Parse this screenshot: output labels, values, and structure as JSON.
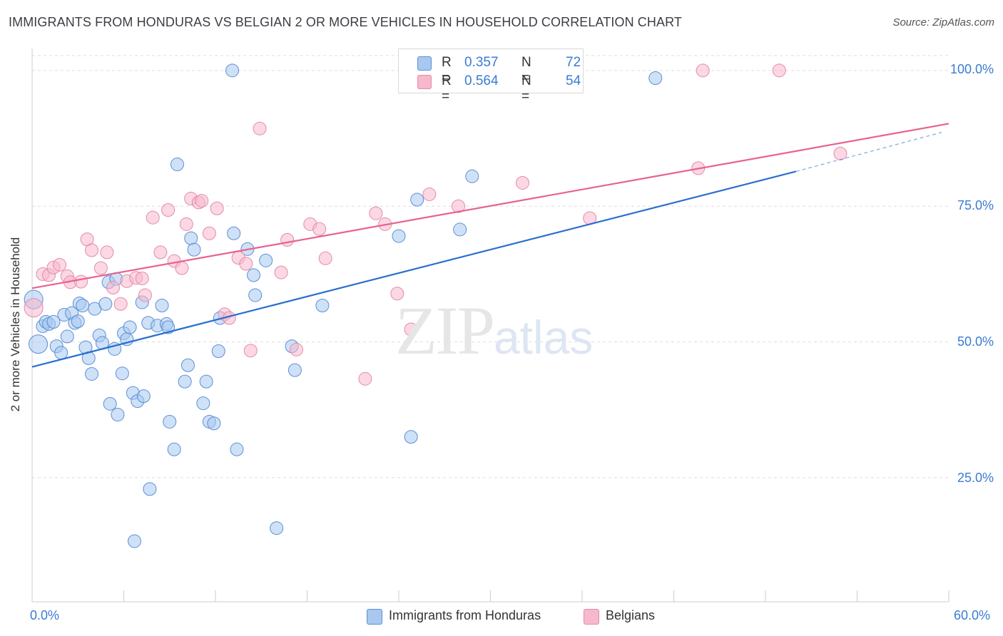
{
  "title": "IMMIGRANTS FROM HONDURAS VS BELGIAN 2 OR MORE VEHICLES IN HOUSEHOLD CORRELATION CHART",
  "source": "Source: ZipAtlas.com",
  "watermark": {
    "zip": "ZIP",
    "atlas": "atlas"
  },
  "legend": {
    "rows": [
      {
        "r_label": "R =",
        "r_value": "0.357",
        "n_label": "N =",
        "n_value": "72"
      },
      {
        "r_label": "R =",
        "r_value": "0.564",
        "n_label": "N =",
        "n_value": "54"
      }
    ]
  },
  "bottom_legend": [
    "Immigrants from Honduras",
    "Belgians"
  ],
  "colors": {
    "honduras_fill": "#a8c8f0",
    "honduras_stroke": "#5b8fd6",
    "honduras_line": "#2a6fd0",
    "belgians_fill": "#f7b8cc",
    "belgians_stroke": "#e58aa8",
    "belgians_line": "#e8628f",
    "tick_text": "#3a7bd5",
    "grid": "#dddddd"
  },
  "chart_data": {
    "type": "scatter",
    "title": "IMMIGRANTS FROM HONDURAS VS BELGIAN 2 OR MORE VEHICLES IN HOUSEHOLD CORRELATION CHART",
    "xlabel": "",
    "ylabel": "2 or more Vehicles in Household",
    "xlim": [
      0,
      60
    ],
    "ylim": [
      2,
      103
    ],
    "x_tick_labels": [
      "0.0%",
      "60.0%"
    ],
    "y_ticks": [
      25,
      50,
      75,
      100
    ],
    "y_tick_labels": [
      "25.0%",
      "50.0%",
      "75.0%",
      "100.0%"
    ],
    "series": [
      {
        "name": "Immigrants from Honduras",
        "r": 0.357,
        "n": 72,
        "trend": {
          "x0": 0,
          "y0": 45.4,
          "x1": 50.0,
          "y1": 81.4,
          "dash_to_x": 60,
          "dash_to_y": 88.6
        },
        "points": [
          [
            0.1,
            57.8
          ],
          [
            0.4,
            49.6
          ],
          [
            0.7,
            52.9
          ],
          [
            0.9,
            53.7
          ],
          [
            1.1,
            53.3
          ],
          [
            1.4,
            53.7
          ],
          [
            1.6,
            49.2
          ],
          [
            1.9,
            48.0
          ],
          [
            2.1,
            55.0
          ],
          [
            2.3,
            51.0
          ],
          [
            2.6,
            55.3
          ],
          [
            2.8,
            53.5
          ],
          [
            3.1,
            57.1
          ],
          [
            3.3,
            56.7
          ],
          [
            3.5,
            49.0
          ],
          [
            3.7,
            47.0
          ],
          [
            3.9,
            44.1
          ],
          [
            4.1,
            56.1
          ],
          [
            4.4,
            51.2
          ],
          [
            4.6,
            49.8
          ],
          [
            4.8,
            57.0
          ],
          [
            5.0,
            61.0
          ],
          [
            5.1,
            38.6
          ],
          [
            5.4,
            48.7
          ],
          [
            5.6,
            36.6
          ],
          [
            5.9,
            44.2
          ],
          [
            6.0,
            51.6
          ],
          [
            6.2,
            50.5
          ],
          [
            6.4,
            52.7
          ],
          [
            6.6,
            40.6
          ],
          [
            6.9,
            39.1
          ],
          [
            7.2,
            57.3
          ],
          [
            7.3,
            40.0
          ],
          [
            7.6,
            53.5
          ],
          [
            7.7,
            22.9
          ],
          [
            8.2,
            53.0
          ],
          [
            8.5,
            56.7
          ],
          [
            8.8,
            53.3
          ],
          [
            8.9,
            52.7
          ],
          [
            9.0,
            35.3
          ],
          [
            9.3,
            30.2
          ],
          [
            9.5,
            82.7
          ],
          [
            10.0,
            42.7
          ],
          [
            10.2,
            45.7
          ],
          [
            10.4,
            69.1
          ],
          [
            10.6,
            67.0
          ],
          [
            11.2,
            38.7
          ],
          [
            11.4,
            42.7
          ],
          [
            11.6,
            35.3
          ],
          [
            11.9,
            35.0
          ],
          [
            12.2,
            48.3
          ],
          [
            12.3,
            54.4
          ],
          [
            13.2,
            70.0
          ],
          [
            13.4,
            30.2
          ],
          [
            14.1,
            67.1
          ],
          [
            14.5,
            62.3
          ],
          [
            14.6,
            58.6
          ],
          [
            15.3,
            65.0
          ],
          [
            16.0,
            15.7
          ],
          [
            17.0,
            49.2
          ],
          [
            17.2,
            44.8
          ],
          [
            19.0,
            56.7
          ],
          [
            24.0,
            69.5
          ],
          [
            24.8,
            32.5
          ],
          [
            25.2,
            76.2
          ],
          [
            28.0,
            70.7
          ],
          [
            28.8,
            80.5
          ],
          [
            6.7,
            13.3
          ],
          [
            13.1,
            100.0
          ],
          [
            40.8,
            98.6
          ],
          [
            5.5,
            61.6
          ],
          [
            3.0,
            53.8
          ]
        ]
      },
      {
        "name": "Belgians",
        "r": 0.564,
        "n": 54,
        "trend": {
          "x0": 0,
          "y0": 59.9,
          "x1": 60,
          "y1": 90.2
        },
        "points": [
          [
            0.1,
            56.3
          ],
          [
            0.7,
            62.5
          ],
          [
            1.1,
            62.3
          ],
          [
            1.4,
            63.7
          ],
          [
            1.8,
            64.2
          ],
          [
            2.3,
            62.1
          ],
          [
            2.5,
            61.0
          ],
          [
            3.2,
            61.1
          ],
          [
            3.6,
            68.9
          ],
          [
            3.9,
            66.9
          ],
          [
            4.5,
            63.6
          ],
          [
            4.9,
            66.5
          ],
          [
            5.3,
            60.0
          ],
          [
            5.8,
            57.0
          ],
          [
            6.2,
            61.2
          ],
          [
            6.8,
            61.8
          ],
          [
            7.2,
            61.7
          ],
          [
            7.4,
            58.6
          ],
          [
            7.9,
            72.9
          ],
          [
            8.4,
            66.5
          ],
          [
            8.9,
            74.3
          ],
          [
            9.3,
            64.9
          ],
          [
            9.8,
            63.6
          ],
          [
            10.1,
            71.7
          ],
          [
            10.4,
            76.4
          ],
          [
            10.9,
            75.7
          ],
          [
            11.1,
            76.0
          ],
          [
            11.6,
            70.0
          ],
          [
            12.1,
            74.6
          ],
          [
            12.6,
            55.1
          ],
          [
            12.9,
            54.4
          ],
          [
            13.5,
            65.5
          ],
          [
            14.0,
            64.4
          ],
          [
            14.3,
            48.4
          ],
          [
            14.9,
            89.3
          ],
          [
            16.3,
            62.8
          ],
          [
            16.7,
            68.8
          ],
          [
            17.3,
            48.6
          ],
          [
            18.2,
            71.7
          ],
          [
            18.8,
            70.8
          ],
          [
            19.2,
            65.4
          ],
          [
            21.8,
            43.2
          ],
          [
            22.5,
            73.7
          ],
          [
            23.1,
            71.7
          ],
          [
            23.9,
            58.9
          ],
          [
            24.8,
            52.3
          ],
          [
            26.0,
            77.2
          ],
          [
            27.9,
            75.0
          ],
          [
            32.1,
            79.3
          ],
          [
            36.5,
            72.8
          ],
          [
            43.6,
            82.0
          ],
          [
            43.9,
            100.0
          ],
          [
            48.9,
            100.0
          ],
          [
            52.9,
            84.7
          ]
        ]
      }
    ]
  }
}
